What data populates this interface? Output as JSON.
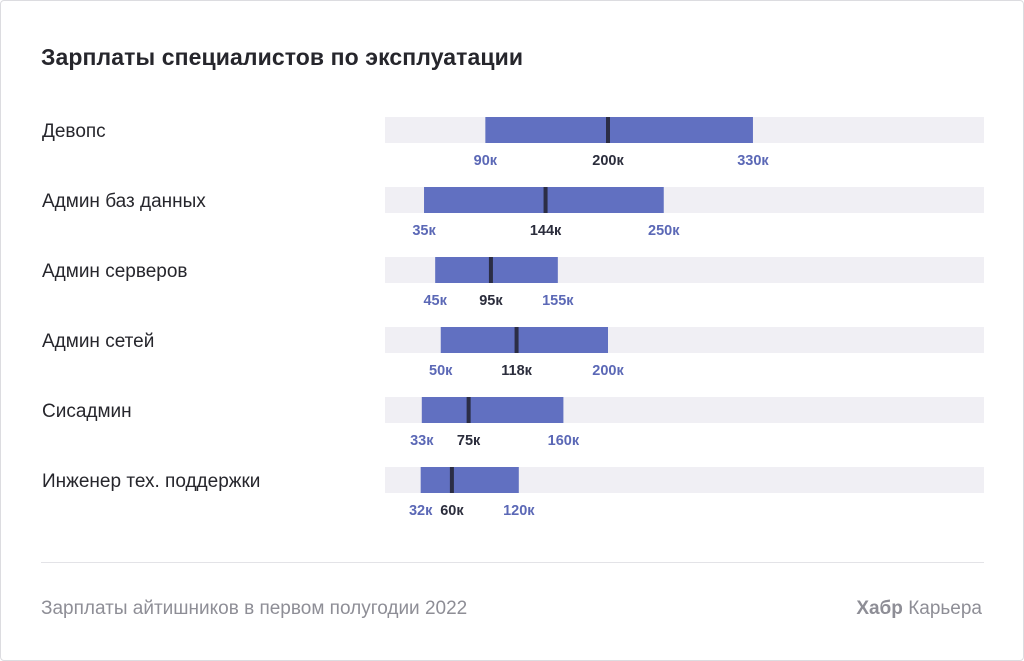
{
  "chart_data": {
    "type": "bar",
    "title": "Зарплаты специалистов по эксплуатации",
    "value_unit": "к",
    "categories": [
      "Девопс",
      "Админ баз данных",
      "Админ серверов",
      "Админ сетей",
      "Сисадмин",
      "Инженер тех. поддержки"
    ],
    "series": [
      {
        "name": "min",
        "values": [
          90,
          35,
          45,
          50,
          33,
          32
        ]
      },
      {
        "name": "median",
        "values": [
          200,
          144,
          95,
          118,
          75,
          60
        ]
      },
      {
        "name": "max",
        "values": [
          330,
          250,
          155,
          200,
          160,
          120
        ]
      }
    ],
    "colors": {
      "range_bar": "#6170c1",
      "track": "#f0eff4",
      "median_marker": "#2b2d45",
      "range_label": "#5b68b6",
      "median_label": "#2b2d3c",
      "category_label": "#26262c"
    },
    "grid": false,
    "legend": "none"
  },
  "footer": {
    "note": "Зарплаты айтишников в первом полугодии 2022",
    "brand_bold": "Хабр",
    "brand_regular": "Карьера"
  }
}
